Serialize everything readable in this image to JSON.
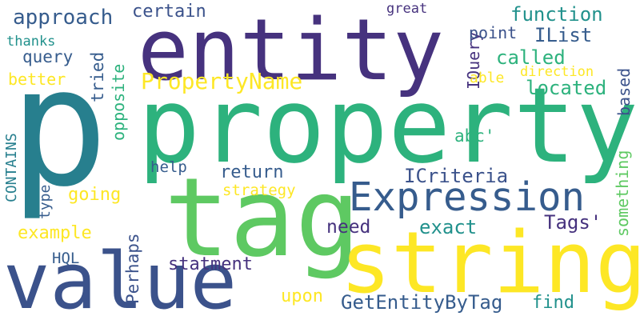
{
  "colors": {
    "background": "#ffffff",
    "viridis_dark_purple": "#46327e",
    "viridis_indigo": "#3b528b",
    "viridis_blue": "#365c8d",
    "viridis_teal": "#277f8e",
    "viridis_sea": "#21918c",
    "viridis_green": "#2db27d",
    "viridis_light_green": "#5ec962",
    "viridis_lime": "#addc30",
    "viridis_yellow": "#fde725"
  },
  "words": [
    {
      "key": "p",
      "text": "p"
    },
    {
      "key": "entity",
      "text": "entity"
    },
    {
      "key": "property",
      "text": "property"
    },
    {
      "key": "tag",
      "text": "tag"
    },
    {
      "key": "string",
      "text": "string"
    },
    {
      "key": "value",
      "text": "value"
    },
    {
      "key": "expression",
      "text": "Expression"
    },
    {
      "key": "propertyname",
      "text": "PropertyName"
    },
    {
      "key": "approach",
      "text": "approach"
    },
    {
      "key": "certain",
      "text": "certain"
    },
    {
      "key": "great",
      "text": "great"
    },
    {
      "key": "function",
      "text": "function"
    },
    {
      "key": "thanks",
      "text": "thanks"
    },
    {
      "key": "query",
      "text": "query"
    },
    {
      "key": "opposite",
      "text": "opposite"
    },
    {
      "key": "tried",
      "text": "tried"
    },
    {
      "key": "better",
      "text": "better"
    },
    {
      "key": "iquery",
      "text": "IQuery"
    },
    {
      "key": "point",
      "text": "point"
    },
    {
      "key": "ilist",
      "text": "IList"
    },
    {
      "key": "called",
      "text": "called"
    },
    {
      "key": "based",
      "text": "based"
    },
    {
      "key": "direction",
      "text": "direction"
    },
    {
      "key": "able",
      "text": "able"
    },
    {
      "key": "located",
      "text": "located"
    },
    {
      "key": "contains",
      "text": "CONTAINS"
    },
    {
      "key": "abc",
      "text": "abc'"
    },
    {
      "key": "something",
      "text": "something"
    },
    {
      "key": "help",
      "text": "help"
    },
    {
      "key": "return",
      "text": "return"
    },
    {
      "key": "icriteria",
      "text": "ICriteria"
    },
    {
      "key": "strategy",
      "text": "strategy"
    },
    {
      "key": "going",
      "text": "going"
    },
    {
      "key": "type",
      "text": "type"
    },
    {
      "key": "perhaps",
      "text": "Perhaps"
    },
    {
      "key": "tags",
      "text": "Tags'"
    },
    {
      "key": "need",
      "text": "need"
    },
    {
      "key": "exact",
      "text": "exact"
    },
    {
      "key": "example",
      "text": "example"
    },
    {
      "key": "hql",
      "text": "HQL"
    },
    {
      "key": "statment",
      "text": "statment"
    },
    {
      "key": "upon",
      "text": "upon"
    },
    {
      "key": "getentitybytag",
      "text": "GetEntityByTag"
    },
    {
      "key": "find",
      "text": "find"
    }
  ]
}
